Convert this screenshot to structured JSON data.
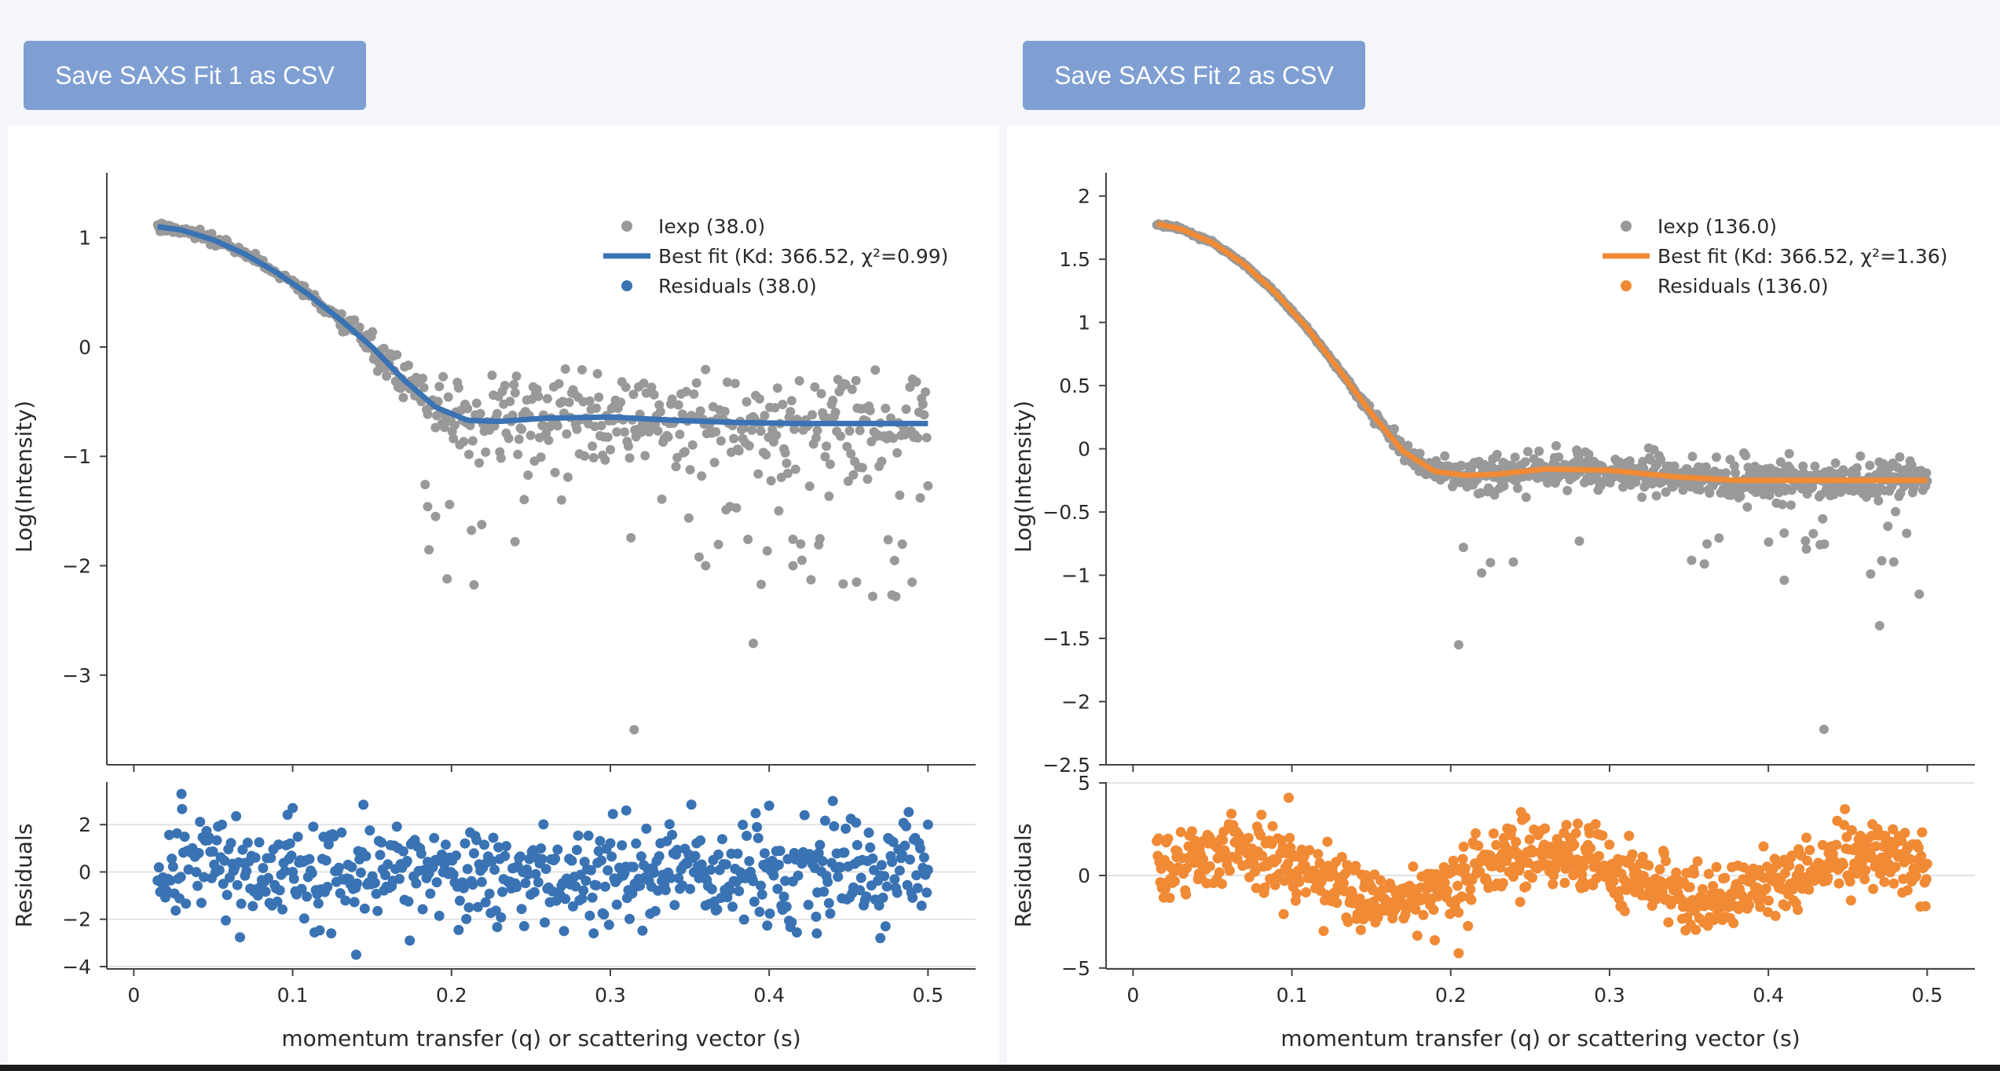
{
  "buttons": {
    "save_fit1": "Save SAXS Fit 1 as CSV",
    "save_fit2": "Save SAXS Fit 2 as CSV"
  },
  "colors": {
    "background": "#f4f6f9",
    "button": "#7f9fd3",
    "experimental": "#999999",
    "fit1": "#3a73b3",
    "fit2": "#f08a35"
  },
  "chart_data": [
    {
      "type": "scatter",
      "xlabel": "momentum transfer (q) or scattering vector (s)",
      "ylabel_top": "Log(Intensity)",
      "ylabel_bottom": "Residuals",
      "xlim": [
        -0.017,
        0.53
      ],
      "ylim_top": [
        -3.82,
        1.45
      ],
      "ylim_bottom": [
        -4.1,
        3.8
      ],
      "x_ticks": [
        0,
        0.1,
        0.2,
        0.3,
        0.4,
        0.5
      ],
      "x_tick_labels": [
        "0",
        "0.1",
        "0.2",
        "0.3",
        "0.4",
        "0.5"
      ],
      "y_ticks_top": [
        1,
        0,
        -1,
        -2,
        -3
      ],
      "y_tick_labels_top": [
        "1",
        "0",
        "−1",
        "−2",
        "−3"
      ],
      "y_ticks_bottom": [
        2,
        0,
        -2,
        -4
      ],
      "y_tick_labels_bottom": [
        "2",
        "0",
        "−2",
        "−4"
      ],
      "legend": [
        "Iexp (38.0)",
        "Best fit (Kd: 366.52, χ²=0.99)",
        "Residuals (38.0)"
      ],
      "legend_position": "top-right",
      "q_range": [
        0.015,
        0.5
      ],
      "n_points": 600,
      "series": [
        {
          "name": "Iexp (38.0)",
          "kind": "markers",
          "color": "#999999"
        },
        {
          "name": "Best fit (Kd: 366.52, χ²=0.99)",
          "kind": "line",
          "color": "#3a73b3",
          "x": [
            0.015,
            0.03,
            0.05,
            0.07,
            0.09,
            0.11,
            0.13,
            0.15,
            0.17,
            0.19,
            0.21,
            0.23,
            0.26,
            0.3,
            0.34,
            0.38,
            0.42,
            0.46,
            0.5
          ],
          "y": [
            1.1,
            1.07,
            0.98,
            0.85,
            0.68,
            0.48,
            0.25,
            0.0,
            -0.3,
            -0.55,
            -0.67,
            -0.68,
            -0.65,
            -0.64,
            -0.67,
            -0.69,
            -0.7,
            -0.7,
            -0.7
          ]
        },
        {
          "name": "Residuals (38.0)",
          "kind": "markers",
          "color": "#3a73b3"
        }
      ],
      "noise": {
        "iexp_low_q": 0.03,
        "iexp_high_q": 0.28,
        "iexp_outlier_fraction": 0.12,
        "iexp_outlier_depth": 1.3,
        "resid_sd": 1.0,
        "resid_wave": 0.0,
        "seed": 17
      },
      "outliers_iexp": [
        {
          "x": 0.315,
          "y": -3.5
        },
        {
          "x": 0.39,
          "y": -2.71
        },
        {
          "x": 0.395,
          "y": -2.17
        },
        {
          "x": 0.36,
          "y": -2.0
        },
        {
          "x": 0.19,
          "y": -1.55
        },
        {
          "x": 0.185,
          "y": -1.46
        },
        {
          "x": 0.24,
          "y": -1.78
        },
        {
          "x": 0.415,
          "y": -2.0
        },
        {
          "x": 0.455,
          "y": -2.15
        },
        {
          "x": 0.49,
          "y": -2.15
        }
      ],
      "outliers_resid": [
        {
          "x": 0.03,
          "y": 3.3
        },
        {
          "x": 0.14,
          "y": -3.5
        },
        {
          "x": 0.1,
          "y": 2.7
        },
        {
          "x": 0.4,
          "y": 2.8
        },
        {
          "x": 0.31,
          "y": 2.6
        },
        {
          "x": 0.47,
          "y": -2.8
        },
        {
          "x": 0.43,
          "y": -2.6
        },
        {
          "x": 0.5,
          "y": 2.0
        }
      ]
    },
    {
      "type": "scatter",
      "xlabel": "momentum transfer (q) or scattering vector (s)",
      "ylabel_top": "Log(Intensity)",
      "ylabel_bottom": "Residuals",
      "xlim": [
        -0.017,
        0.53
      ],
      "ylim_top": [
        -2.5,
        2.06
      ],
      "ylim_bottom": [
        -5.05,
        5.05
      ],
      "x_ticks": [
        0,
        0.1,
        0.2,
        0.3,
        0.4,
        0.5
      ],
      "x_tick_labels": [
        "0",
        "0.1",
        "0.2",
        "0.3",
        "0.4",
        "0.5"
      ],
      "y_ticks_top": [
        2,
        1.5,
        1,
        0.5,
        0,
        -0.5,
        -1,
        -1.5,
        -2,
        -2.5
      ],
      "y_tick_labels_top": [
        "2",
        "1.5",
        "1",
        "0.5",
        "0",
        "−0.5",
        "−1",
        "−1.5",
        "−2",
        "−2.5"
      ],
      "y_ticks_bottom": [
        5,
        0,
        -5
      ],
      "y_tick_labels_bottom": [
        "5",
        "0",
        "−5"
      ],
      "legend": [
        "Iexp (136.0)",
        "Best fit (Kd: 366.52, χ²=1.36)",
        "Residuals (136.0)"
      ],
      "legend_position": "top-right",
      "q_range": [
        0.015,
        0.5
      ],
      "n_points": 900,
      "series": [
        {
          "name": "Iexp (136.0)",
          "kind": "markers",
          "color": "#999999"
        },
        {
          "name": "Best fit (Kd: 366.52, χ²=1.36)",
          "kind": "line",
          "color": "#f08a35",
          "x": [
            0.015,
            0.03,
            0.05,
            0.07,
            0.09,
            0.11,
            0.13,
            0.15,
            0.17,
            0.19,
            0.21,
            0.23,
            0.26,
            0.3,
            0.34,
            0.38,
            0.42,
            0.46,
            0.5
          ],
          "y": [
            1.78,
            1.74,
            1.63,
            1.46,
            1.23,
            0.95,
            0.62,
            0.28,
            -0.02,
            -0.18,
            -0.21,
            -0.2,
            -0.16,
            -0.17,
            -0.22,
            -0.25,
            -0.25,
            -0.25,
            -0.25
          ]
        },
        {
          "name": "Residuals (136.0)",
          "kind": "markers",
          "color": "#f08a35"
        }
      ],
      "noise": {
        "iexp_low_q": 0.008,
        "iexp_high_q": 0.1,
        "iexp_outlier_fraction": 0.03,
        "iexp_outlier_depth": 0.5,
        "resid_sd": 0.9,
        "resid_wave": 1.2,
        "seed": 91
      },
      "outliers_iexp": [
        {
          "x": 0.435,
          "y": -2.22
        },
        {
          "x": 0.205,
          "y": -1.55
        },
        {
          "x": 0.47,
          "y": -1.4
        },
        {
          "x": 0.495,
          "y": -1.15
        },
        {
          "x": 0.41,
          "y": -1.04
        },
        {
          "x": 0.225,
          "y": -0.9
        },
        {
          "x": 0.208,
          "y": -0.78
        }
      ],
      "outliers_resid": [
        {
          "x": 0.098,
          "y": 4.2
        },
        {
          "x": 0.205,
          "y": -4.2
        },
        {
          "x": 0.19,
          "y": -3.5
        },
        {
          "x": 0.245,
          "y": 3.0
        },
        {
          "x": 0.28,
          "y": 2.8
        },
        {
          "x": 0.12,
          "y": -3.0
        }
      ]
    }
  ]
}
